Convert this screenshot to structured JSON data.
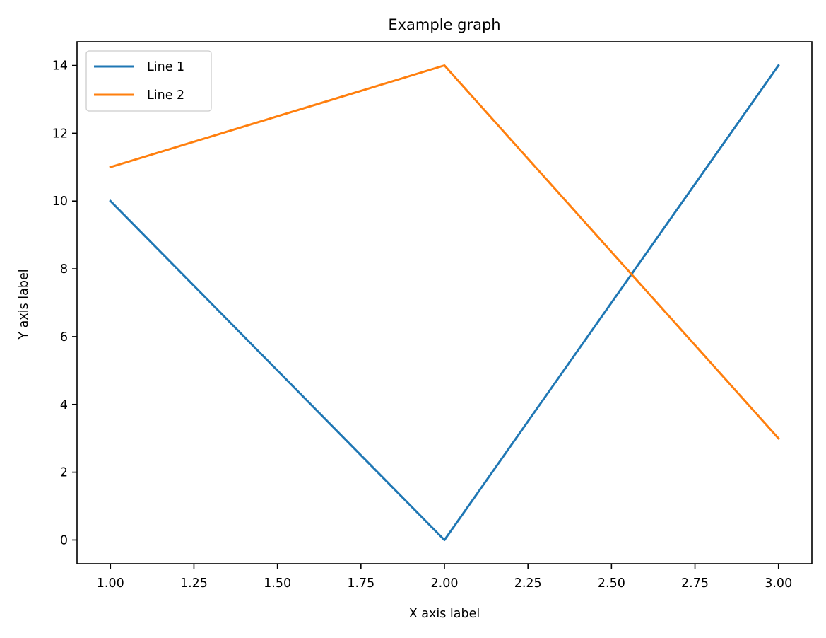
{
  "chart_data": {
    "type": "line",
    "title": "Example graph",
    "xlabel": "X axis label",
    "ylabel": "Y axis label",
    "xlim": [
      0.9,
      3.1
    ],
    "ylim": [
      -0.7,
      14.7
    ],
    "xticks": [
      1.0,
      1.25,
      1.5,
      1.75,
      2.0,
      2.25,
      2.5,
      2.75,
      3.0
    ],
    "xtick_labels": [
      "1.00",
      "1.25",
      "1.50",
      "1.75",
      "2.00",
      "2.25",
      "2.50",
      "2.75",
      "3.00"
    ],
    "yticks": [
      0,
      2,
      4,
      6,
      8,
      10,
      12,
      14
    ],
    "ytick_labels": [
      "0",
      "2",
      "4",
      "6",
      "8",
      "10",
      "12",
      "14"
    ],
    "grid": false,
    "legend_position": "top-left",
    "x": [
      1,
      2,
      3
    ],
    "series": [
      {
        "name": "Line 1",
        "values": [
          10,
          0,
          14
        ],
        "color": "#1f77b4"
      },
      {
        "name": "Line 2",
        "values": [
          11,
          14,
          3
        ],
        "color": "#ff7f0e"
      }
    ]
  }
}
